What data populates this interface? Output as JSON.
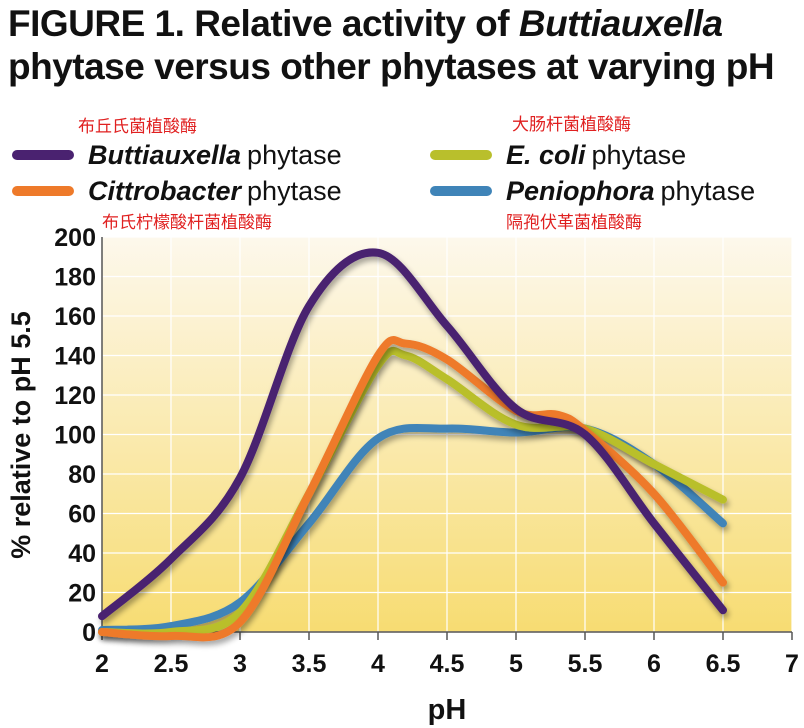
{
  "title": {
    "line1_prefix": "FIGURE 1. Relative activity of ",
    "line1_italic": "Buttiauxella",
    "line2": "phytase versus other phytases at varying pH"
  },
  "annotations": {
    "buttiauxella_cn": "布丘氏菌植酸酶",
    "ecoli_cn": "大肠杆菌植酸酶",
    "citrobacter_cn": "布氏柠檬酸杆菌植酸酶",
    "peniophora_cn": "隔孢伏革菌植酸酶"
  },
  "legend": [
    {
      "italic": "Buttiauxella",
      "rest": "phytase",
      "color": "#4a2270"
    },
    {
      "italic": "E. coli",
      "rest": "phytase",
      "color": "#b9bf2c"
    },
    {
      "italic": "Cittrobacter",
      "rest": "phytase",
      "color": "#ee7a2a"
    },
    {
      "italic": "Peniophora",
      "rest": "phytase",
      "color": "#3f84b8"
    }
  ],
  "chart_data": {
    "type": "line",
    "xlabel": "pH",
    "ylabel": "% relative to pH 5.5",
    "xlim": [
      2,
      7
    ],
    "ylim": [
      0,
      200
    ],
    "xticks": [
      "2",
      "2.5",
      "3",
      "3.5",
      "4",
      "4.5",
      "5",
      "5.5",
      "6",
      "6.5",
      "7"
    ],
    "yticks": [
      "0",
      "20",
      "40",
      "60",
      "80",
      "100",
      "120",
      "140",
      "160",
      "180",
      "200"
    ],
    "background": "cream-to-yellow gradient",
    "series": [
      {
        "name": "Buttiauxella phytase",
        "color": "#4a2270",
        "x": [
          2,
          2.5,
          3,
          3.5,
          4,
          4.5,
          5,
          5.5,
          6,
          6.5
        ],
        "y": [
          8,
          37,
          78,
          165,
          192,
          155,
          113,
          100,
          55,
          11
        ]
      },
      {
        "name": "E. coli phytase",
        "color": "#b9bf2c",
        "x": [
          2,
          2.5,
          3,
          3.5,
          4,
          4.2,
          4.5,
          5,
          5.5,
          6,
          6.5
        ],
        "y": [
          0,
          0,
          10,
          70,
          135,
          140,
          128,
          105,
          103,
          85,
          67
        ]
      },
      {
        "name": "Cittrobacter phytase",
        "color": "#ee7a2a",
        "x": [
          2,
          2.5,
          3,
          3.5,
          4,
          4.2,
          4.5,
          5,
          5.3,
          5.5,
          6,
          6.5
        ],
        "y": [
          0,
          -2,
          5,
          70,
          140,
          146,
          138,
          112,
          110,
          102,
          70,
          25
        ]
      },
      {
        "name": "Peniophora phytase",
        "color": "#3f84b8",
        "x": [
          2,
          2.5,
          3,
          3.5,
          4,
          4.5,
          5,
          5.5,
          6,
          6.5
        ],
        "y": [
          1,
          3,
          15,
          55,
          98,
          103,
          101,
          103,
          85,
          55
        ]
      }
    ]
  }
}
